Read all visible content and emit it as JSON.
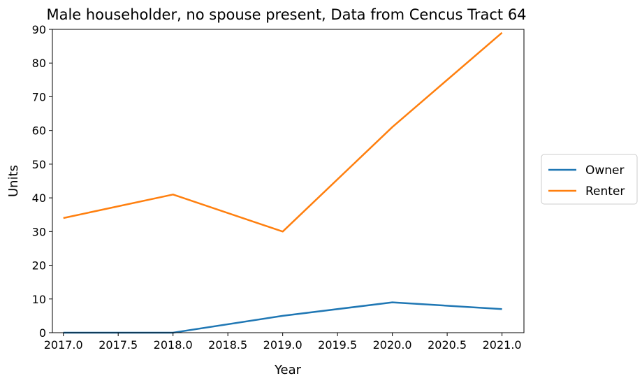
{
  "chart_data": {
    "type": "line",
    "title": "Male householder, no spouse present, Data from Cencus Tract 64",
    "xlabel": "Year",
    "ylabel": "Units",
    "xlim": [
      2016.9,
      2021.2
    ],
    "ylim": [
      0,
      90
    ],
    "x": [
      2017,
      2018,
      2019,
      2020,
      2021
    ],
    "x_ticks": [
      "2017.0",
      "2017.5",
      "2018.0",
      "2018.5",
      "2019.0",
      "2019.5",
      "2020.0",
      "2020.5",
      "2021.0"
    ],
    "y_ticks": [
      "0",
      "10",
      "20",
      "30",
      "40",
      "50",
      "60",
      "70",
      "80",
      "90"
    ],
    "grid": false,
    "legend_position": "right",
    "series": [
      {
        "name": "Owner",
        "values": [
          0,
          0,
          5,
          9,
          7
        ],
        "color": "#1f77b4"
      },
      {
        "name": "Renter",
        "values": [
          34,
          41,
          30,
          61,
          89
        ],
        "color": "#ff7f0e"
      }
    ]
  }
}
